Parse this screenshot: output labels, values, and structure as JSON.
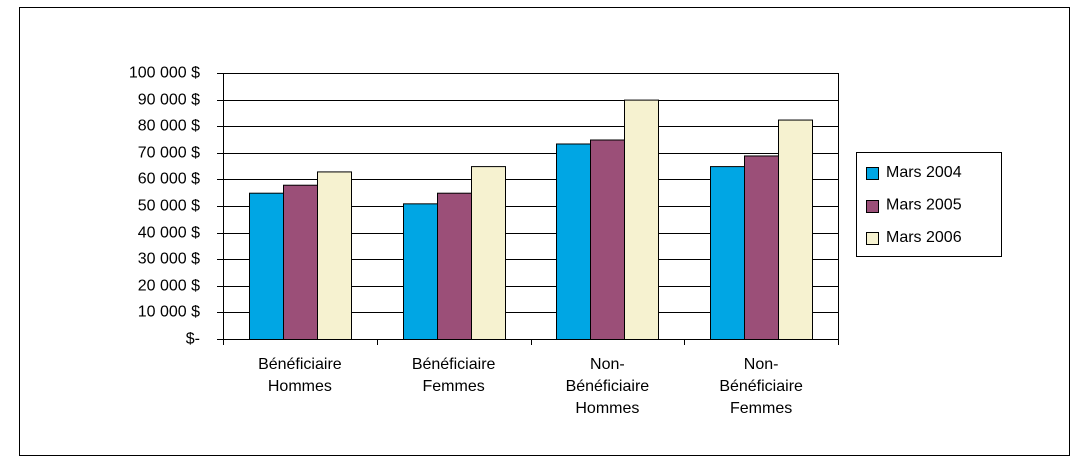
{
  "chart_data": {
    "type": "bar",
    "categories": [
      [
        "Bénéficiaire",
        "Hommes"
      ],
      [
        "Bénéficiaire",
        "Femmes"
      ],
      [
        "Non-",
        "Bénéficiaire",
        "Hommes"
      ],
      [
        "Non-",
        "Bénéficiaire",
        "Femmes"
      ]
    ],
    "series": [
      {
        "name": "Mars 2004",
        "color": "#00a6e4",
        "values": [
          55000,
          51000,
          73500,
          65000
        ]
      },
      {
        "name": "Mars 2005",
        "color": "#9b4f78",
        "values": [
          58000,
          55000,
          75000,
          69000
        ]
      },
      {
        "name": "Mars 2006",
        "color": "#f6f2d0",
        "values": [
          63000,
          65000,
          90000,
          82500
        ]
      }
    ],
    "ylim": [
      0,
      100000
    ],
    "yticks": [
      {
        "value": 0,
        "label": "$-"
      },
      {
        "value": 10000,
        "label": "10 000 $"
      },
      {
        "value": 20000,
        "label": "20 000 $"
      },
      {
        "value": 30000,
        "label": "30 000 $"
      },
      {
        "value": 40000,
        "label": "40 000 $"
      },
      {
        "value": 50000,
        "label": "50 000 $"
      },
      {
        "value": 60000,
        "label": "60 000 $"
      },
      {
        "value": 70000,
        "label": "70 000 $"
      },
      {
        "value": 80000,
        "label": "80 000 $"
      },
      {
        "value": 90000,
        "label": "90 000 $"
      },
      {
        "value": 100000,
        "label": "100 000 $"
      }
    ],
    "grid": true,
    "legend": "right"
  }
}
